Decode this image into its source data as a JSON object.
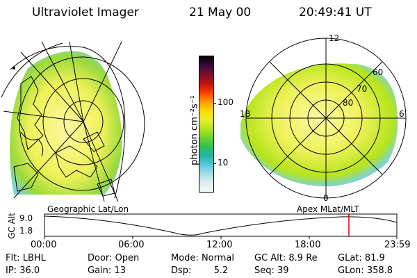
{
  "header": {
    "instrument": "Ultraviolet Imager",
    "date": "21 May 00",
    "time": "20:49:41 UT"
  },
  "colorbar": {
    "label": "photon cm⁻²s⁻¹",
    "ticks": [
      "100",
      "10"
    ],
    "colors": [
      "#000000",
      "#3a0a38",
      "#7a0f2e",
      "#c01010",
      "#ff3b00",
      "#ff9a00",
      "#ffd800",
      "#e9ef2a",
      "#b6e41c",
      "#6fd32a",
      "#2fbf55",
      "#1fb7a5",
      "#58c8dc",
      "#a9dde6",
      "#ddeef0",
      "#f6f6f6"
    ]
  },
  "polar_labels": {
    "top": "12",
    "left": "18",
    "right": "6",
    "bottom": "0",
    "rings": [
      "60",
      "70",
      "80"
    ]
  },
  "map_labels": {
    "left": "Geographic Lat/Lon",
    "right": "Apex MLat/MLT"
  },
  "timeline": {
    "axis_label": "GC Alt",
    "y_ticks": [
      "9.0",
      "1.8"
    ],
    "x_ticks": [
      "00:00",
      "06:00",
      "12:00",
      "18:00",
      "23:59"
    ],
    "marker_time": "20:49:41",
    "marker_color": "#e00000"
  },
  "status": {
    "row1": [
      {
        "label": "Flt:",
        "value": "LBHL"
      },
      {
        "label": "Door:",
        "value": "Open"
      },
      {
        "label": "Mode:",
        "value": "Normal"
      },
      {
        "label": "GC Alt:",
        "value": "8.9 Re"
      },
      {
        "label": "GLat:",
        "value": "81.9"
      }
    ],
    "row2": [
      {
        "label": "IP:",
        "value": "36.0"
      },
      {
        "label": "Gain:",
        "value": "13"
      },
      {
        "label": "Dsp:",
        "value": "5.2"
      },
      {
        "label": "Seq:",
        "value": "39"
      },
      {
        "label": "GLon:",
        "value": "358.8"
      }
    ]
  },
  "palette": {
    "aurora_green": "#9bd93a",
    "aurora_yellow": "#eef25a",
    "aurora_light": "#fff7a0",
    "aurora_cyan": "#7fd4cf"
  }
}
